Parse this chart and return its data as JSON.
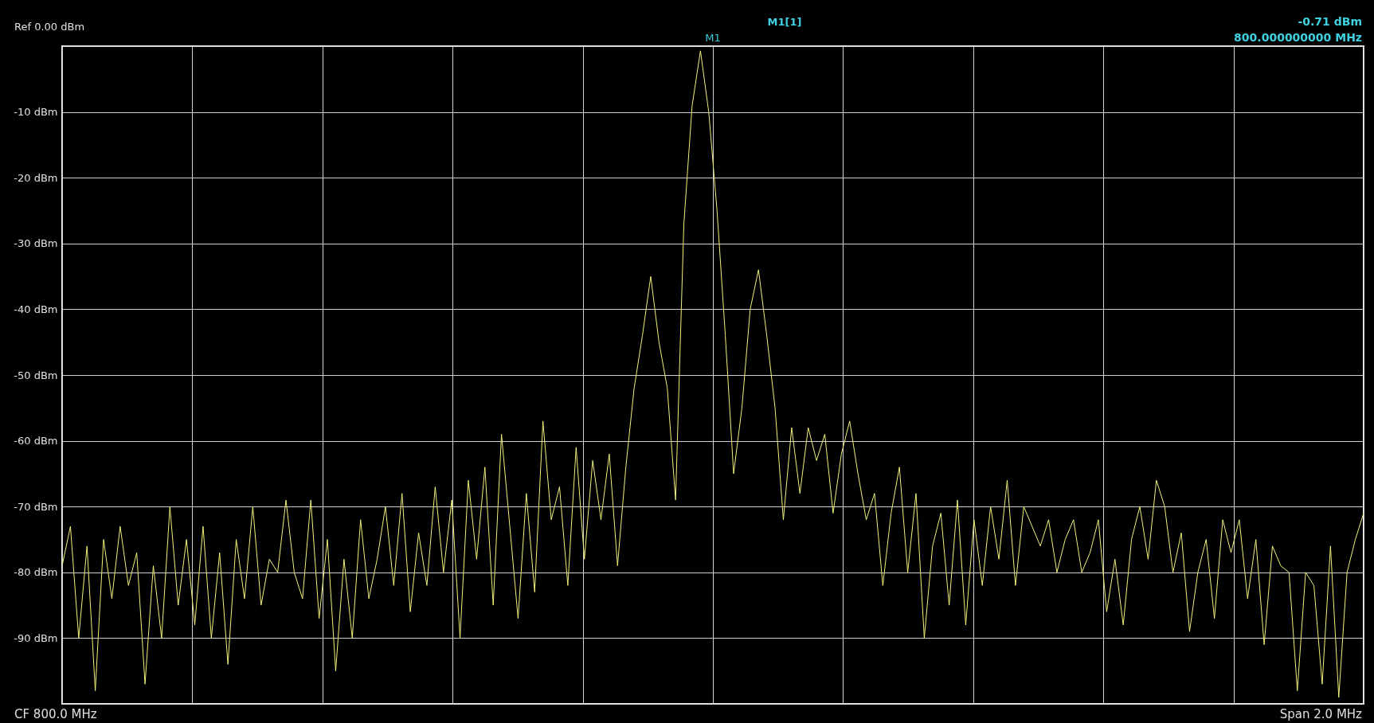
{
  "chart_data": {
    "type": "line",
    "annotations": [
      "Ref  0.00 dBm",
      "M1[1]",
      "-0.71 dBm",
      "800.000000000 MHz",
      "CF  800.0 MHz",
      "Span  2.0 MHz",
      "M1"
    ],
    "categories": [
      null,
      null,
      null,
      null,
      null,
      null,
      null,
      null,
      null,
      null,
      null,
      null,
      null,
      null,
      null,
      null,
      null,
      null,
      null,
      null,
      null,
      null,
      null,
      null,
      null,
      null,
      null,
      null,
      null,
      null,
      null,
      null,
      null,
      null,
      null,
      null,
      null,
      null,
      null,
      null,
      null,
      null,
      null,
      null,
      null,
      null,
      null,
      null,
      null,
      null,
      null,
      null,
      null,
      null,
      null,
      null,
      null,
      null,
      null,
      null,
      null,
      null,
      null,
      null,
      null,
      null,
      null,
      null,
      null,
      null,
      null,
      null,
      null,
      null,
      null,
      null,
      null,
      null,
      null,
      null,
      null,
      null,
      null,
      null,
      null,
      null,
      null,
      null,
      null,
      null,
      null,
      null,
      null,
      null,
      null,
      null,
      null,
      null,
      null,
      null,
      null,
      null,
      null,
      null,
      null,
      null,
      null,
      null,
      null,
      null,
      null,
      null,
      null,
      null,
      null,
      null,
      null,
      null,
      null,
      null,
      null,
      null,
      null,
      null,
      null,
      null,
      null,
      null,
      null,
      null,
      null,
      null,
      null,
      null,
      null,
      null,
      null,
      null,
      null,
      null,
      null,
      null,
      null,
      null,
      null,
      null,
      null,
      null,
      null,
      null,
      null,
      null,
      null,
      null,
      null,
      null,
      null,
      null
    ],
    "series": [
      {
        "color": "#f2f27a",
        "values": [
          -79,
          -73,
          -90,
          -76,
          -98,
          -75,
          -84,
          -73,
          -82,
          -77,
          -97,
          -79,
          -90,
          -70,
          -85,
          -75,
          -88,
          -73,
          -90,
          -77,
          -94,
          -75,
          -84,
          -70,
          -85,
          -78,
          -80,
          -69,
          -80,
          -84,
          -69,
          -87,
          -75,
          -95,
          -78,
          -90,
          -72,
          -84,
          -78,
          -70,
          -82,
          -68,
          -86,
          -74,
          -82,
          -67,
          -80,
          -69,
          -90,
          -66,
          -78,
          -64,
          -85,
          -59,
          -73,
          -87,
          -68,
          -83,
          -57,
          -72,
          -67,
          -82,
          -61,
          -78,
          -63,
          -72,
          -62,
          -79,
          -64,
          -52,
          -44,
          -35,
          -45,
          -52,
          -69,
          -27,
          -9,
          -0.71,
          -10,
          -25,
          -44,
          -65,
          -55,
          -40,
          -34,
          -44,
          -55,
          -72,
          -58,
          -68,
          -58,
          -63,
          -59,
          -71,
          -62,
          -57,
          -65,
          -72,
          -68,
          -82,
          -71,
          -64,
          -80,
          -68,
          -90,
          -76,
          -71,
          -85,
          -69,
          -88,
          -72,
          -82,
          -70,
          -78,
          -66,
          -82,
          -70,
          -73,
          -76,
          -72,
          -80,
          -75,
          -72,
          -80,
          -77,
          -72,
          -86,
          -78,
          -88,
          -75,
          -70,
          -78,
          -66,
          -70,
          -80,
          -74,
          -89,
          -80,
          -75,
          -87,
          -72,
          -77,
          -72,
          -84,
          -75,
          -91,
          -76,
          -79,
          -80,
          -98,
          -80,
          -82,
          -97,
          -76,
          -99,
          -80,
          -75,
          -71
        ]
      }
    ],
    "ylim": [
      -100,
      0
    ],
    "yticks": [
      {
        "value": 0,
        "label": null
      },
      {
        "value": -10,
        "label": "-10 dBm"
      },
      {
        "value": -20,
        "label": "-20 dBm"
      },
      {
        "value": -30,
        "label": "-30 dBm"
      },
      {
        "value": -40,
        "label": "-40 dBm"
      },
      {
        "value": -50,
        "label": "-50 dBm"
      },
      {
        "value": -60,
        "label": "-60 dBm"
      },
      {
        "value": -70,
        "label": "-70 dBm"
      },
      {
        "value": -80,
        "label": "-80 dBm"
      },
      {
        "value": -90,
        "label": "-90 dBm"
      },
      {
        "value": -100,
        "label": null
      }
    ],
    "tick_labels": "y",
    "grid": true,
    "marker": "none",
    "line_style": "solid"
  }
}
